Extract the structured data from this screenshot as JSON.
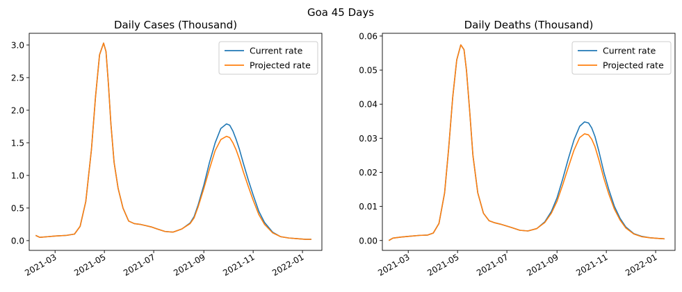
{
  "suptitle": "Goa 45 Days",
  "chart_data": [
    {
      "type": "line",
      "title": "Daily Cases (Thousand)",
      "xlabel": "",
      "ylabel": "",
      "x_ticks": [
        "2021-03",
        "2021-05",
        "2021-07",
        "2021-09",
        "2021-11",
        "2022-01"
      ],
      "y_ticks": [
        "0.0",
        "0.5",
        "1.0",
        "1.5",
        "2.0",
        "2.5",
        "3.0"
      ],
      "xlim": [
        "2021-01-28",
        "2022-01-25"
      ],
      "ylim": [
        -0.15,
        3.18
      ],
      "grid": false,
      "legend_position": "top-right",
      "x": [
        "2021-02-05",
        "2021-02-10",
        "2021-02-20",
        "2021-03-01",
        "2021-03-15",
        "2021-03-25",
        "2021-04-01",
        "2021-04-08",
        "2021-04-15",
        "2021-04-20",
        "2021-04-25",
        "2021-04-30",
        "2021-05-03",
        "2021-05-06",
        "2021-05-09",
        "2021-05-13",
        "2021-05-18",
        "2021-05-24",
        "2021-05-31",
        "2021-06-07",
        "2021-06-14",
        "2021-06-21",
        "2021-06-28",
        "2021-07-05",
        "2021-07-15",
        "2021-07-25",
        "2021-08-05",
        "2021-08-15",
        "2021-08-20",
        "2021-08-25",
        "2021-09-01",
        "2021-09-08",
        "2021-09-15",
        "2021-09-22",
        "2021-09-29",
        "2021-10-03",
        "2021-10-07",
        "2021-10-11",
        "2021-10-15",
        "2021-10-20",
        "2021-10-26",
        "2021-11-01",
        "2021-11-08",
        "2021-11-15",
        "2021-11-25",
        "2021-12-05",
        "2021-12-15",
        "2021-12-25",
        "2022-01-05",
        "2022-01-12"
      ],
      "series": [
        {
          "name": "Current rate",
          "color": "#1f77b4",
          "values": [
            0.08,
            0.05,
            0.06,
            0.07,
            0.08,
            0.1,
            0.22,
            0.6,
            1.4,
            2.2,
            2.85,
            3.03,
            2.9,
            2.4,
            1.8,
            1.2,
            0.8,
            0.5,
            0.3,
            0.26,
            0.25,
            0.23,
            0.21,
            0.18,
            0.14,
            0.13,
            0.18,
            0.27,
            0.37,
            0.55,
            0.85,
            1.2,
            1.5,
            1.72,
            1.79,
            1.77,
            1.68,
            1.55,
            1.4,
            1.18,
            0.93,
            0.7,
            0.45,
            0.28,
            0.13,
            0.06,
            0.04,
            0.03,
            0.02,
            0.02
          ]
        },
        {
          "name": "Projected rate",
          "color": "#ff7f0e",
          "values": [
            0.08,
            0.05,
            0.06,
            0.07,
            0.08,
            0.1,
            0.22,
            0.6,
            1.4,
            2.2,
            2.85,
            3.03,
            2.9,
            2.4,
            1.8,
            1.2,
            0.8,
            0.5,
            0.3,
            0.26,
            0.25,
            0.23,
            0.21,
            0.18,
            0.14,
            0.13,
            0.18,
            0.26,
            0.35,
            0.52,
            0.8,
            1.1,
            1.38,
            1.55,
            1.6,
            1.58,
            1.5,
            1.39,
            1.25,
            1.05,
            0.83,
            0.62,
            0.4,
            0.25,
            0.12,
            0.06,
            0.04,
            0.03,
            0.02,
            0.02
          ]
        }
      ]
    },
    {
      "type": "line",
      "title": "Daily Deaths (Thousand)",
      "xlabel": "",
      "ylabel": "",
      "x_ticks": [
        "2021-03",
        "2021-05",
        "2021-07",
        "2021-09",
        "2021-11",
        "2022-01"
      ],
      "y_ticks": [
        "0.00",
        "0.01",
        "0.02",
        "0.03",
        "0.04",
        "0.05",
        "0.06"
      ],
      "xlim": [
        "2021-01-28",
        "2022-01-25"
      ],
      "ylim": [
        -0.0029,
        0.0608
      ],
      "grid": false,
      "legend_position": "top-right",
      "x": [
        "2021-02-05",
        "2021-02-10",
        "2021-02-20",
        "2021-03-01",
        "2021-03-15",
        "2021-03-25",
        "2021-04-01",
        "2021-04-08",
        "2021-04-15",
        "2021-04-20",
        "2021-04-25",
        "2021-04-30",
        "2021-05-05",
        "2021-05-09",
        "2021-05-12",
        "2021-05-16",
        "2021-05-20",
        "2021-05-26",
        "2021-06-02",
        "2021-06-09",
        "2021-06-16",
        "2021-06-23",
        "2021-06-30",
        "2021-07-07",
        "2021-07-17",
        "2021-07-27",
        "2021-08-07",
        "2021-08-17",
        "2021-08-25",
        "2021-09-01",
        "2021-09-08",
        "2021-09-15",
        "2021-09-22",
        "2021-09-29",
        "2021-10-05",
        "2021-10-10",
        "2021-10-14",
        "2021-10-18",
        "2021-10-23",
        "2021-10-29",
        "2021-11-04",
        "2021-11-11",
        "2021-11-18",
        "2021-11-25",
        "2021-12-05",
        "2021-12-15",
        "2021-12-25",
        "2022-01-05",
        "2022-01-12"
      ],
      "series": [
        {
          "name": "Current rate",
          "color": "#1f77b4",
          "values": [
            0.0,
            0.0007,
            0.001,
            0.0012,
            0.0015,
            0.0016,
            0.0022,
            0.005,
            0.014,
            0.027,
            0.042,
            0.053,
            0.0574,
            0.056,
            0.05,
            0.038,
            0.025,
            0.014,
            0.008,
            0.0058,
            0.0052,
            0.0048,
            0.0043,
            0.0038,
            0.003,
            0.0028,
            0.0035,
            0.0055,
            0.0085,
            0.0125,
            0.018,
            0.024,
            0.0295,
            0.0335,
            0.0348,
            0.0345,
            0.033,
            0.0305,
            0.026,
            0.02,
            0.015,
            0.01,
            0.0065,
            0.004,
            0.002,
            0.0012,
            0.0008,
            0.0006,
            0.0005
          ]
        },
        {
          "name": "Projected rate",
          "color": "#ff7f0e",
          "values": [
            0.0,
            0.0007,
            0.001,
            0.0012,
            0.0015,
            0.0016,
            0.0022,
            0.005,
            0.014,
            0.027,
            0.042,
            0.053,
            0.0574,
            0.056,
            0.05,
            0.038,
            0.025,
            0.014,
            0.008,
            0.0058,
            0.0052,
            0.0048,
            0.0043,
            0.0038,
            0.003,
            0.0028,
            0.0035,
            0.0053,
            0.008,
            0.0115,
            0.0163,
            0.0215,
            0.0265,
            0.0302,
            0.0313,
            0.031,
            0.0297,
            0.0275,
            0.0235,
            0.0182,
            0.0137,
            0.0092,
            0.006,
            0.0037,
            0.0019,
            0.0011,
            0.0008,
            0.0006,
            0.0005
          ]
        }
      ]
    }
  ]
}
